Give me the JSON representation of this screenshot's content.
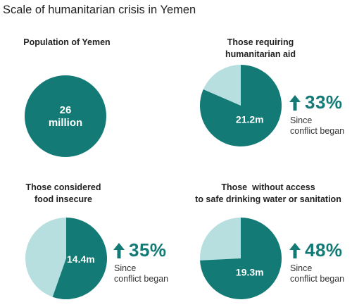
{
  "title": "Scale of humanitarian crisis in Yemen",
  "colors": {
    "main": "#137a76",
    "light": "#b8dfdf",
    "text": "#222222"
  },
  "chart_data": [
    {
      "type": "pie",
      "label_lines": [
        "Population of Yemen"
      ],
      "value_lines": [
        "26",
        "million"
      ],
      "share": 1.0
    },
    {
      "type": "pie",
      "label_lines": [
        "Those requiring",
        "humanitarian aid"
      ],
      "value_lines": [
        "21.2m"
      ],
      "share": 0.815,
      "change_pct": "33%",
      "change_note_lines": [
        "Since",
        "conflict began"
      ]
    },
    {
      "type": "pie",
      "label_lines": [
        "Those considered",
        "food insecure"
      ],
      "value_lines": [
        "14.4m"
      ],
      "share": 0.554,
      "change_pct": "35%",
      "change_note_lines": [
        "Since",
        "conflict began"
      ]
    },
    {
      "type": "pie",
      "label_lines": [
        "Those  without access",
        "to safe drinking water or sanitation"
      ],
      "value_lines": [
        "19.3m"
      ],
      "share": 0.742,
      "change_pct": "48%",
      "change_note_lines": [
        "Since",
        "conflict began"
      ]
    }
  ]
}
